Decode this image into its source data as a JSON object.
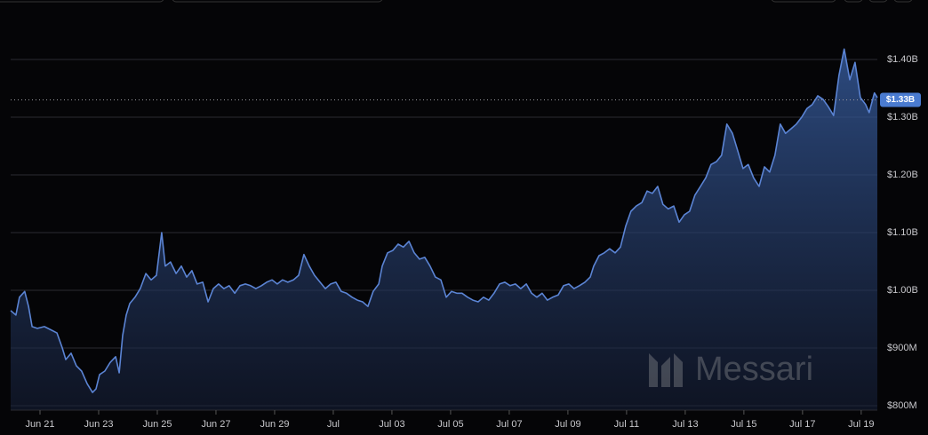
{
  "chart_data": {
    "type": "area",
    "watermark": "Messari",
    "current_value": {
      "value": 1330,
      "label": "$1.33B"
    },
    "x": [
      0,
      0.18,
      0.3,
      0.48,
      0.61,
      0.73,
      0.91,
      1.15,
      1.39,
      1.58,
      1.76,
      1.88,
      2.06,
      2.24,
      2.42,
      2.61,
      2.79,
      2.91,
      3.03,
      3.21,
      3.39,
      3.58,
      3.7,
      3.82,
      3.94,
      4.06,
      4.24,
      4.42,
      4.61,
      4.79,
      4.97,
      5.15,
      5.27,
      5.45,
      5.64,
      5.82,
      6.0,
      6.18,
      6.36,
      6.55,
      6.73,
      6.91,
      7.09,
      7.27,
      7.45,
      7.64,
      7.82,
      8.0,
      8.18,
      8.36,
      8.55,
      8.73,
      8.91,
      9.09,
      9.27,
      9.45,
      9.64,
      9.82,
      10.0,
      10.18,
      10.36,
      10.55,
      10.73,
      10.91,
      11.09,
      11.27,
      11.45,
      11.64,
      11.82,
      12.0,
      12.18,
      12.36,
      12.55,
      12.67,
      12.85,
      13.03,
      13.21,
      13.39,
      13.58,
      13.76,
      13.94,
      14.12,
      14.3,
      14.48,
      14.67,
      14.85,
      15.03,
      15.21,
      15.39,
      15.58,
      15.76,
      15.94,
      16.12,
      16.3,
      16.48,
      16.67,
      16.85,
      17.03,
      17.21,
      17.39,
      17.58,
      17.76,
      17.94,
      18.12,
      18.3,
      18.48,
      18.67,
      18.85,
      19.03,
      19.21,
      19.39,
      19.58,
      19.76,
      19.88,
      20.06,
      20.24,
      20.42,
      20.61,
      20.79,
      20.97,
      21.15,
      21.33,
      21.52,
      21.7,
      21.88,
      22.06,
      22.24,
      22.42,
      22.61,
      22.79,
      22.97,
      23.15,
      23.33,
      23.52,
      23.7,
      23.88,
      24.06,
      24.24,
      24.42,
      24.61,
      24.79,
      24.97,
      25.15,
      25.33,
      25.52,
      25.7,
      25.88,
      26.06,
      26.24,
      26.42,
      26.61,
      26.79,
      26.97,
      27.15,
      27.33,
      27.52,
      27.7,
      27.88,
      28.06,
      28.24,
      28.42,
      28.61,
      28.79,
      28.97,
      29.15,
      29.27,
      29.45,
      29.55
    ],
    "series": [
      {
        "color": "#5b84d4",
        "values": [
          965,
          957,
          988,
          998,
          972,
          937,
          934,
          937,
          931,
          926,
          900,
          880,
          891,
          869,
          860,
          838,
          823,
          829,
          854,
          860,
          875,
          885,
          857,
          922,
          957,
          977,
          988,
          1003,
          1029,
          1018,
          1026,
          1100,
          1042,
          1049,
          1029,
          1042,
          1023,
          1034,
          1011,
          1014,
          980,
          1003,
          1011,
          1003,
          1008,
          995,
          1008,
          1011,
          1008,
          1003,
          1008,
          1014,
          1018,
          1011,
          1018,
          1014,
          1018,
          1026,
          1062,
          1042,
          1026,
          1014,
          1003,
          1011,
          1014,
          998,
          995,
          988,
          983,
          980,
          972,
          998,
          1011,
          1042,
          1065,
          1069,
          1080,
          1075,
          1085,
          1065,
          1054,
          1057,
          1042,
          1023,
          1018,
          988,
          998,
          995,
          995,
          988,
          983,
          980,
          988,
          983,
          995,
          1011,
          1014,
          1008,
          1011,
          1003,
          1011,
          995,
          988,
          995,
          983,
          988,
          992,
          1008,
          1011,
          1003,
          1008,
          1014,
          1023,
          1042,
          1060,
          1065,
          1072,
          1065,
          1075,
          1111,
          1137,
          1146,
          1152,
          1172,
          1168,
          1180,
          1149,
          1141,
          1146,
          1118,
          1131,
          1137,
          1165,
          1180,
          1195,
          1218,
          1223,
          1234,
          1288,
          1272,
          1242,
          1211,
          1218,
          1195,
          1180,
          1214,
          1205,
          1234,
          1288,
          1272,
          1280,
          1288,
          1300,
          1315,
          1322,
          1337,
          1331,
          1318,
          1303,
          1372,
          1418,
          1365,
          1395,
          1334,
          1322,
          1308,
          1342,
          1334
        ]
      }
    ],
    "xlim": [
      0,
      29.55
    ],
    "xticks": [
      {
        "value": 1,
        "label": "Jun 21"
      },
      {
        "value": 3,
        "label": "Jun 23"
      },
      {
        "value": 5,
        "label": "Jun 25"
      },
      {
        "value": 7,
        "label": "Jun 27"
      },
      {
        "value": 9,
        "label": "Jun 29"
      },
      {
        "value": 11,
        "label": "Jul"
      },
      {
        "value": 13,
        "label": "Jul 03"
      },
      {
        "value": 15,
        "label": "Jul 05"
      },
      {
        "value": 17,
        "label": "Jul 07"
      },
      {
        "value": 19,
        "label": "Jul 09"
      },
      {
        "value": 21,
        "label": "Jul 11"
      },
      {
        "value": 23,
        "label": "Jul 13"
      },
      {
        "value": 25,
        "label": "Jul 15"
      },
      {
        "value": 27,
        "label": "Jul 17"
      },
      {
        "value": 29,
        "label": "Jul 19"
      }
    ],
    "ylim": [
      800,
      1400
    ],
    "yticks": [
      {
        "value": 800,
        "label": "$800M"
      },
      {
        "value": 900,
        "label": "$900M"
      },
      {
        "value": 1000,
        "label": "$1.00B"
      },
      {
        "value": 1100,
        "label": "$1.10B"
      },
      {
        "value": 1200,
        "label": "$1.20B"
      },
      {
        "value": 1300,
        "label": "$1.30B"
      },
      {
        "value": 1400,
        "label": "$1.40B"
      }
    ],
    "grid": true
  }
}
